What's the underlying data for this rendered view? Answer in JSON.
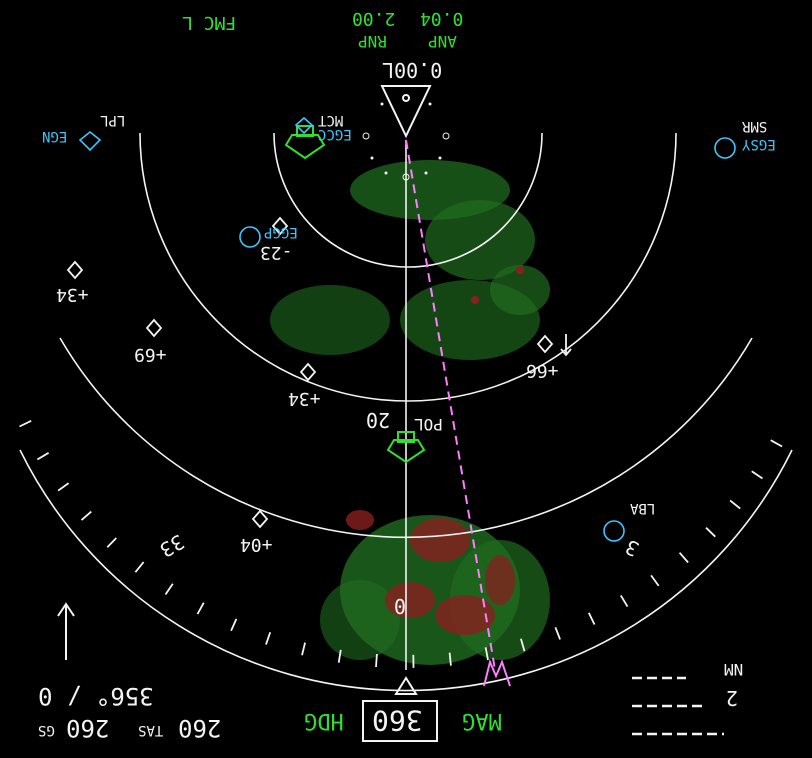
{
  "header": {
    "fmc_source": "FMC L",
    "rnp_value": "2.00",
    "rnp_label": "RNP",
    "anp_value": "0.04",
    "anp_label": "ANP",
    "xtk_error": "0.00L"
  },
  "wind": {
    "readout": "356° / 0"
  },
  "speeds": {
    "gs_label": "GS",
    "gs_value": "260",
    "tas_label": "TAS",
    "tas_value": "260"
  },
  "heading": {
    "mode": "HDG",
    "value": "360",
    "reference": "MAG"
  },
  "compass": {
    "label_33": "33",
    "label_0": "0",
    "label_3": "3"
  },
  "navaids": {
    "pol_name": "POL",
    "pol_distance": "20",
    "mct_name": "MCT",
    "egcc_name": "EGCC",
    "eggp_name": "EGGP",
    "egsy_name": "EGSY",
    "lbl_name": "LPL",
    "smr_name": "SMR",
    "lba_name": "LBA",
    "egns_name": "EGN"
  },
  "traffic": [
    {
      "label": "+34"
    },
    {
      "label": "+69"
    },
    {
      "label": "+34"
    },
    {
      "label": "-23"
    },
    {
      "label": "+66"
    },
    {
      "label": "+04"
    }
  ],
  "scale": {
    "unit": "NM",
    "value": "2"
  },
  "colors": {
    "green": "#2fe02f",
    "cyan": "#3cc6ff",
    "magenta": "#ff7dff",
    "white": "#f4f4f4",
    "wx_green": "#1f6b1f",
    "wx_red": "#8a1f1f"
  }
}
